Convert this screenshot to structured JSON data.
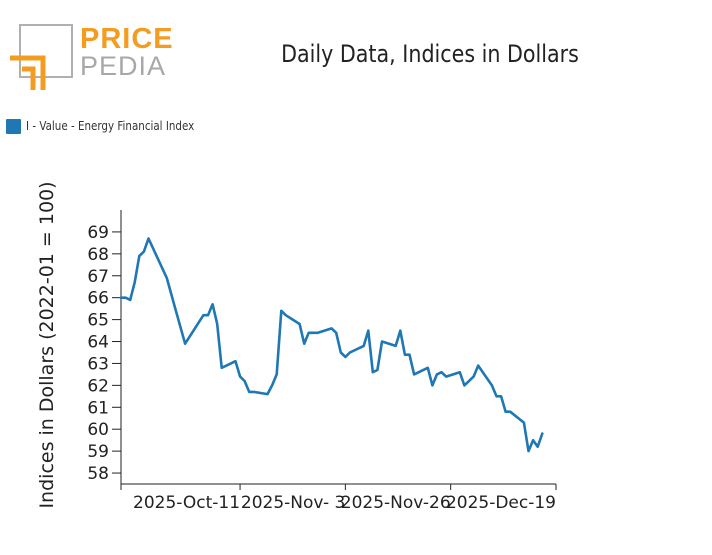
{
  "brand": {
    "word_1": "PRICE",
    "word_2": "PEDIA",
    "color_primary": "#f39c1f",
    "color_secondary": "#a8a8a8"
  },
  "chart_data": {
    "type": "line",
    "title": "Daily Data, Indices in Dollars",
    "ylabel": "Indices in Dollars (2022-01 = 100)",
    "xlabel": "",
    "ylim": [
      57.5,
      70
    ],
    "yticks": [
      58,
      59,
      60,
      61,
      62,
      63,
      64,
      65,
      66,
      67,
      68,
      69
    ],
    "xlim": [
      "2025-09-15",
      "2025-12-19"
    ],
    "xticks": [
      {
        "date": "2025-10-11",
        "label": "2025-Oct-11"
      },
      {
        "date": "2025-11-03",
        "label": "2025-Nov- 3"
      },
      {
        "date": "2025-11-26",
        "label": "2025-Nov-26"
      },
      {
        "date": "2025-12-19",
        "label": "2025-Dec-19"
      }
    ],
    "legend_position": "top-left",
    "series": [
      {
        "name": "I - Value - Energy Financial Index",
        "color": "#1f77b4",
        "points": [
          [
            "2025-09-15",
            66.0
          ],
          [
            "2025-09-16",
            66.0
          ],
          [
            "2025-09-17",
            65.9
          ],
          [
            "2025-09-18",
            66.7
          ],
          [
            "2025-09-19",
            67.9
          ],
          [
            "2025-09-20",
            68.1
          ],
          [
            "2025-09-21",
            68.7
          ],
          [
            "2025-09-25",
            66.9
          ],
          [
            "2025-09-27",
            65.4
          ],
          [
            "2025-09-29",
            63.9
          ],
          [
            "2025-10-03",
            65.2
          ],
          [
            "2025-10-04",
            65.2
          ],
          [
            "2025-10-05",
            65.7
          ],
          [
            "2025-10-06",
            64.8
          ],
          [
            "2025-10-07",
            62.8
          ],
          [
            "2025-10-09",
            63.0
          ],
          [
            "2025-10-10",
            63.1
          ],
          [
            "2025-10-11",
            62.4
          ],
          [
            "2025-10-12",
            62.2
          ],
          [
            "2025-10-13",
            61.7
          ],
          [
            "2025-10-14",
            61.7
          ],
          [
            "2025-10-17",
            61.6
          ],
          [
            "2025-10-18",
            62.0
          ],
          [
            "2025-10-19",
            62.5
          ],
          [
            "2025-10-20",
            65.4
          ],
          [
            "2025-10-21",
            65.2
          ],
          [
            "2025-10-24",
            64.8
          ],
          [
            "2025-10-25",
            63.9
          ],
          [
            "2025-10-26",
            64.4
          ],
          [
            "2025-10-28",
            64.4
          ],
          [
            "2025-10-31",
            64.6
          ],
          [
            "2025-11-01",
            64.4
          ],
          [
            "2025-11-02",
            63.5
          ],
          [
            "2025-11-03",
            63.3
          ],
          [
            "2025-11-04",
            63.5
          ],
          [
            "2025-11-07",
            63.8
          ],
          [
            "2025-11-08",
            64.5
          ],
          [
            "2025-11-09",
            62.6
          ],
          [
            "2025-11-10",
            62.7
          ],
          [
            "2025-11-11",
            64.0
          ],
          [
            "2025-11-14",
            63.8
          ],
          [
            "2025-11-15",
            64.5
          ],
          [
            "2025-11-16",
            63.4
          ],
          [
            "2025-11-17",
            63.4
          ],
          [
            "2025-11-18",
            62.5
          ],
          [
            "2025-11-21",
            62.8
          ],
          [
            "2025-11-22",
            62.0
          ],
          [
            "2025-11-23",
            62.5
          ],
          [
            "2025-11-24",
            62.6
          ],
          [
            "2025-11-25",
            62.4
          ],
          [
            "2025-11-28",
            62.6
          ],
          [
            "2025-11-29",
            62.0
          ],
          [
            "2025-12-01",
            62.4
          ],
          [
            "2025-12-02",
            62.9
          ],
          [
            "2025-12-05",
            62.0
          ],
          [
            "2025-12-06",
            61.5
          ],
          [
            "2025-12-07",
            61.5
          ],
          [
            "2025-12-08",
            60.8
          ],
          [
            "2025-12-09",
            60.8
          ],
          [
            "2025-12-12",
            60.3
          ],
          [
            "2025-12-13",
            59.0
          ],
          [
            "2025-12-14",
            59.5
          ],
          [
            "2025-12-15",
            59.2
          ],
          [
            "2025-12-16",
            59.8
          ]
        ]
      }
    ]
  }
}
